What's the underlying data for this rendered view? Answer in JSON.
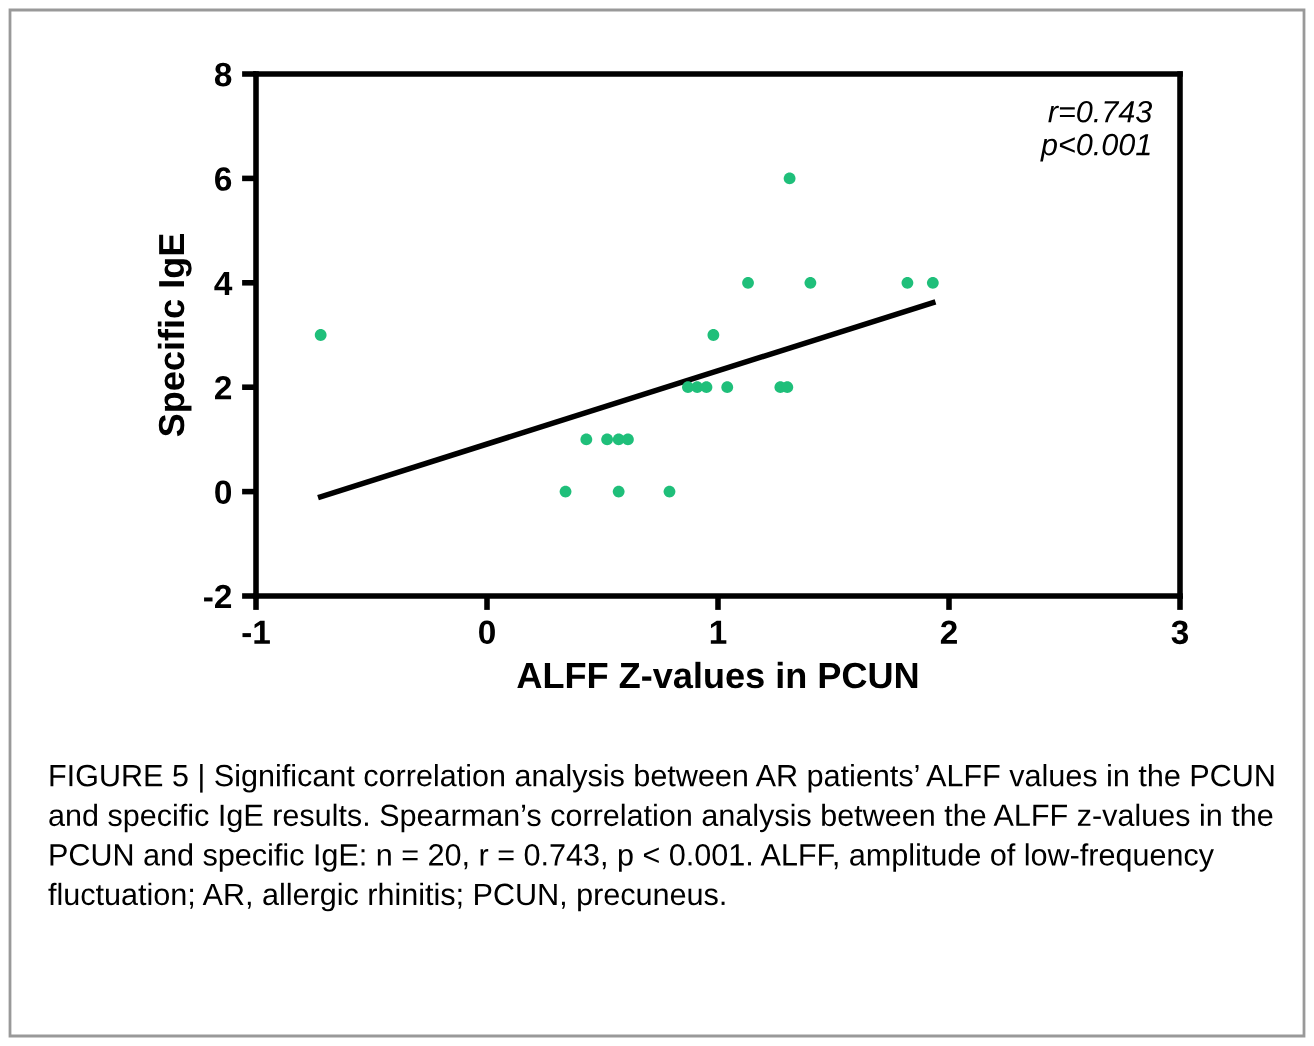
{
  "chart_data": {
    "type": "scatter",
    "xlabel": "ALFF Z-values in PCUN",
    "ylabel": "Specific IgE",
    "series": [
      {
        "color": "#1fbf7a",
        "marker": "circle",
        "x": [
          -0.72,
          0.34,
          0.43,
          0.52,
          0.57,
          0.61,
          0.57,
          0.79,
          0.87,
          0.91,
          0.95,
          0.98,
          1.04,
          1.13,
          1.27,
          1.3,
          1.31,
          1.4,
          1.82,
          1.93
        ],
        "values": [
          3,
          0,
          1,
          1,
          1,
          1,
          0,
          0,
          2,
          2,
          2,
          3,
          2,
          4,
          2,
          2,
          6,
          4,
          4,
          4
        ]
      },
      {
        "type": "line",
        "color": "#000000",
        "marker": "none",
        "x": [
          -0.72,
          1.93
        ],
        "values": [
          -0.1,
          3.62
        ]
      }
    ],
    "xlim": [
      -1,
      3
    ],
    "xticks": [
      -1,
      0,
      1,
      2,
      3
    ],
    "ylim": [
      -2,
      8
    ],
    "yticks": [
      -2,
      0,
      2,
      4,
      6,
      8
    ],
    "grid": false,
    "legend": false,
    "annotations": [
      "r=0.743\np<0.001",
      "FIGURE 5 | Significant correlation analysis between AR patients’ ALFF values in the PCUN and specific IgE results. Spearman’s correlation analysis between the ALFF z-values in the PCUN and specific IgE: n = 20, r = 0.743, p < 0.001. ALFF, amplitude of low-frequency fluctuation; AR, allergic rhinitis; PCUN, precuneus."
    ]
  }
}
